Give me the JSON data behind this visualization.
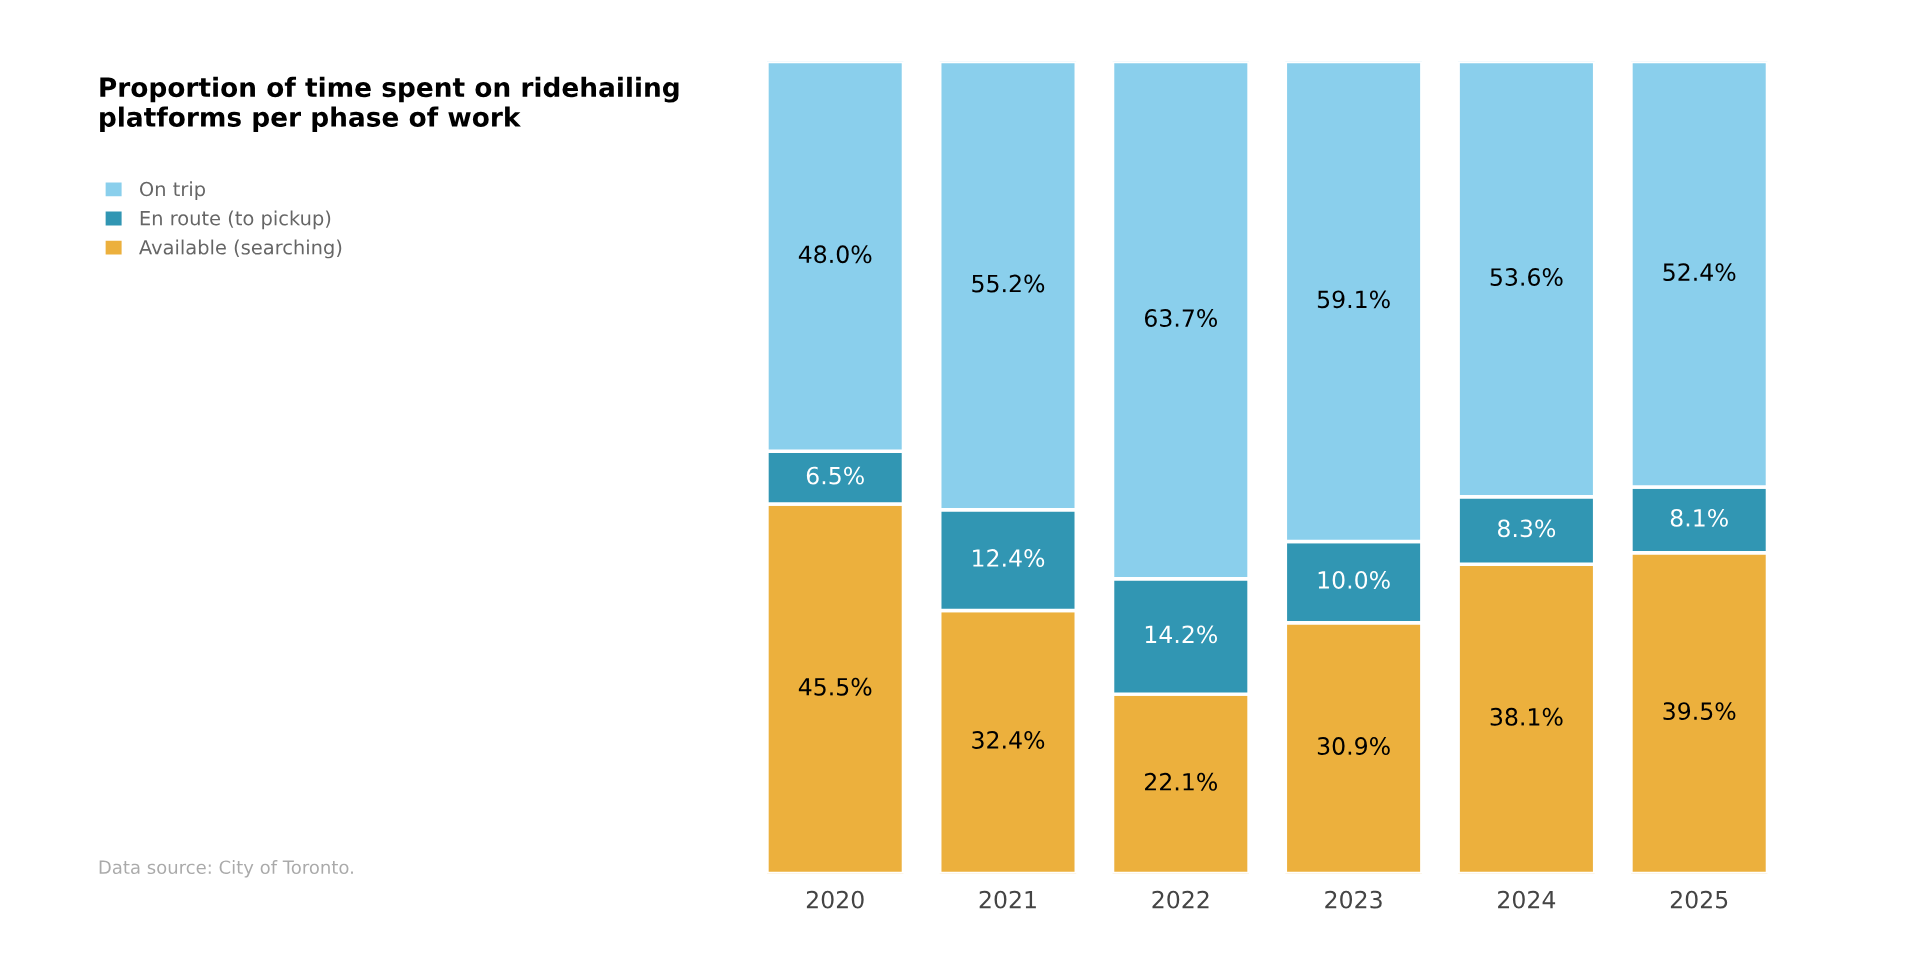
{
  "chart_data": {
    "type": "bar",
    "stacked": true,
    "title": "Proportion of time spent on ridehailing\nplatforms per phase of work",
    "categories": [
      "2020",
      "2021",
      "2022",
      "2023",
      "2024",
      "2025"
    ],
    "series": [
      {
        "name": "Available (searching)",
        "color": "#ecb03d",
        "values": [
          45.5,
          32.4,
          22.1,
          30.9,
          38.1,
          39.5
        ],
        "value_labels": [
          "45.5%",
          "32.4%",
          "22.1%",
          "30.9%",
          "38.1%",
          "39.5%"
        ]
      },
      {
        "name": "En route (to pickup)",
        "color": "#3196b3",
        "values": [
          6.5,
          12.4,
          14.2,
          10.0,
          8.3,
          8.1
        ],
        "value_labels": [
          "6.5%",
          "12.4%",
          "14.2%",
          "10.0%",
          "8.3%",
          "8.1%"
        ]
      },
      {
        "name": "On trip",
        "color": "#8acfec",
        "values": [
          48.0,
          55.2,
          63.7,
          59.1,
          53.6,
          52.4
        ],
        "value_labels": [
          "48.0%",
          "55.2%",
          "63.7%",
          "59.1%",
          "53.6%",
          "52.4%"
        ]
      }
    ],
    "ylim": [
      0,
      100
    ],
    "tick_labels": "x",
    "grid": false,
    "legend": "top left",
    "annotations": [
      "Data source: City of Toronto."
    ]
  }
}
